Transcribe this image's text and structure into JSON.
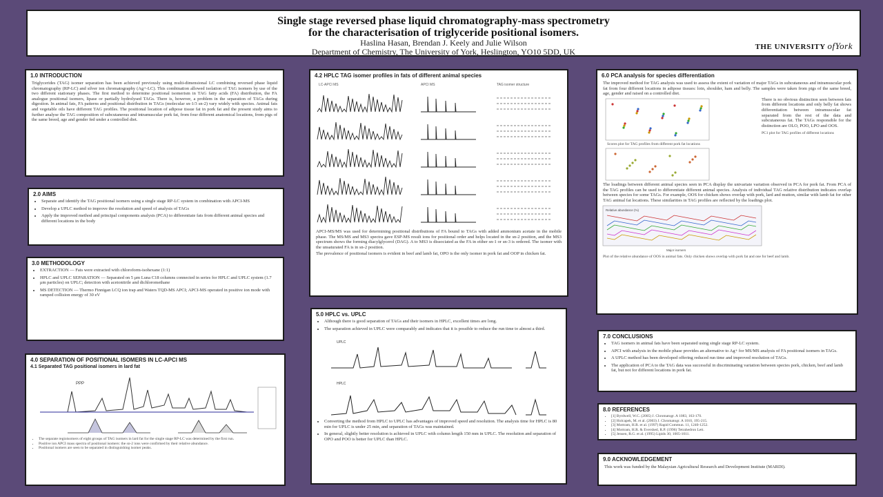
{
  "title": {
    "line1": "Single stage reversed phase liquid chromatography-mass spectrometry",
    "line2": "for the characterisation of triglyceride positional isomers.",
    "authors": "Haslina Hasan, Brendan J. Keely and Julie Wilson",
    "affiliation": "Department of Chemistry, The University of York, Heslington, YO10 5DD, UK",
    "logo_main": "THE UNIVERSITY",
    "logo_of": "of",
    "logo_york": "York"
  },
  "sections": {
    "introduction": {
      "heading": "1.0 INTRODUCTION",
      "text": "Triglycerides (TAG) isomer separation has been achieved previously using multi-dimensional LC combining reversed phase liquid chromatography (RP-LC) and silver ion chromatography (Ag+-LC). This combination allowed isolation of TAG isomers by use of the two different stationary phases. The first method to determine positional isomerism in TAG fatty acids (FA) distribution, the FA analogue positional isomers, lipase or partially hydrolysed TAGs. There is, however, a problem in the separation of TAGs during digestion. In animal fats, FA patterns and positional distribution in TAGs (molecular sn-1/3 sn-2) vary widely with species. Animal fats and vegetable oils have different TAG profiles. The positional location of adipose tissue fat in pork fat and the present study aims to further analyse the TAG composition of subcutaneous and intramuscular pork fat, from four different anatomical locations, from pigs of the same breed, age and gender fed under a controlled diet."
    },
    "aims": {
      "heading": "2.0 AIMS",
      "items": [
        "Separate and identify the TAG positional isomers using a single stage RP-LC system in combination with APCI-MS",
        "Develop a UPLC method to improve the resolution and speed of analysis of TAGs",
        "Apply the improved method and principal components analysis (PCA) to differentiate fats from different animal species and different locations in the body"
      ]
    },
    "methodology": {
      "heading": "3.0 METHODOLOGY",
      "items": [
        "EXTRACTION — Fats were extracted with chloroform-isohexane (1:1)",
        "HPLC and UPLC SEPARATION — Separated on 5 μm Luna C18 columns connected in series for HPLC and UPLC system (1.7 μm particles) on UPLC; detection with acetonitrile and dichloromethane",
        "MS DETECTION — Thermo Finnigan LCQ ion trap and Waters TQD-MS APCI; APCI-MS operated in positive ion mode with ramped collision energy of 30 eV"
      ]
    },
    "separation": {
      "heading": "4.0 SEPARATION OF POSITIONAL ISOMERS IN LC-APCI MS",
      "subheading": "4.1 Separated TAG positional isomers in lard fat",
      "chart_label": "PPP",
      "captions": [
        "The separate regioisomers of eight groups of TAG isomers in lard fat for the single stage RP-LC was determined by the first run.",
        "Positive ion APCI mass spectra of positional isomers: the sn-2 ions were confirmed by their relative abundance.",
        "Positional isomers are seen to be separated in distinguishing isomer peaks."
      ]
    },
    "hplc_profiles": {
      "heading": "4.2 HPLC TAG isomer profiles in fats of different animal species",
      "col_labels": [
        "LC-APCI MS",
        "APCI MS",
        "TAG isomer structure"
      ],
      "text": "APCI-MS/MS was used for determining positional distributions of FA bound to TAGs with added ammonium acetate in the mobile phase. The MS/MS and MS3 spectra gave ESP-MS result ions for positional order and helps located in the sn-2 position, and the MS3 spectrum shows the forming diacylglycerol (DAG). A to MS3 is dissociated as the FA in either sn-1 or sn-3 is ordered. The isomer with the unsaturated FA is in sn-2 position.",
      "text2": "The prevalence of positional isomers is evident in beef and lamb fat, OPO is the only isomer in pork fat and OOP in chicken fat."
    },
    "uplc": {
      "heading": "5.0 HPLC vs. UPLC",
      "items": [
        "Although there is good separation of TAGs and their isomers in HPLC, excellent times are long.",
        "The separation achieved in UPLC were comparably and indicates that it is possible to reduce the run time to almost a third."
      ],
      "chart_top_label": "UPLC",
      "chart_bottom_label": "HPLC",
      "items_after": [
        "Converting the method from HPLC to UPLC has advantages of improved speed and resolution. The analysis time for HPLC is 80 min for UPLC is under 25 min, and separation of TAGs was maintained.",
        "In general, slightly better resolution is achieved in UPLC with column length 150 mm in UPLC. The resolution and separation of OPO and POO is better for UPLC than HPLC."
      ]
    },
    "pca": {
      "heading": "6.0 PCA analysis for species differentiation",
      "text": "The improved method for TAG analysis was used to assess the extent of variation of major TAGs in subcutaneous and intramuscular pork fat from four different locations in adipose tissues: loin, shoulder, ham and belly. The samples were taken from pigs of the same breed, age, gender and raised on a controlled diet.",
      "side_text": "There is no obvious distinction seen between fats from different locations and only belly fat shows differentiation between intramuscular fat separated from the rest of the data and subcutaneous fat. The TAGs responsible for the distinction are OLO, POO, LPO and OOS.",
      "caption1": "Scores plot for TAG profiles from different pork fat locations",
      "caption2": "PC1 plot for TAG profiles of different locations",
      "text2": "The loadings between different animal species seen in PCA display the univariate variation observed in PCA for pork fat. From PCA of the TAG profiles can be used to differentiate different animal species. Analysis of individual TAG relative distribution indicates overlap between species for some TAGs. For example, OOS for chicken shows overlap with pork, lard and mutton, similar with lamb fat for other TAG animal fat locations. These similarities in TAG profiles are reflected by the loadings plot.",
      "chart_ylabel": "Relative abundance (%)",
      "chart_xlabel": "Major isomers",
      "caption3": "Plot of the relative abundance of OOS in animal fats. Only chicken shows overlap with pork fat and one for beef and lamb."
    },
    "conclusions": {
      "heading": "7.0 CONCLUSIONS",
      "items": [
        "TAG isomers in animal fats have been separated using single stage RP-LC system.",
        "APCI with analysis in the mobile phase provides an alternative to Ag+ for MS/MS analysis of FA positional isomers in TAGs.",
        "A UPLC method has been developed offering reduced run time and improved resolution of TAGs.",
        "The application of PCA to the TAG data was successful in discriminating variation between species pork, chicken, beef and lamb fat, but not for different locations in pork fat."
      ]
    },
    "references": {
      "heading": "8.0 REFERENCES",
      "items": [
        "[1] Byrdwell, W.C. (2005) J. Chromatogr. A 1083, 163-170.",
        "[2] Holcapek, M. et al. (2003) J. Chromatogr. A 1010, 195-215.",
        "[3] Mottram, H.R. et al. (1997) Rapid Commun. 11, 1240-1252.",
        "[4] Mottram, H.R. & Evershed, R.P. (1996) Tetrahedron Lett.",
        "[5] Jensen, R.G. et al. (1995) Lipids 30, 1005-1011."
      ]
    },
    "acknowledgements": {
      "heading": "9.0 ACKNOWLEDGEMENT",
      "text": "This work was funded by the Malaysian Agricultural Research and Development Institute (MARDI)."
    }
  },
  "colors": {
    "background": "#5b4a78",
    "panel": "#ffffff",
    "trace": "#222222"
  }
}
